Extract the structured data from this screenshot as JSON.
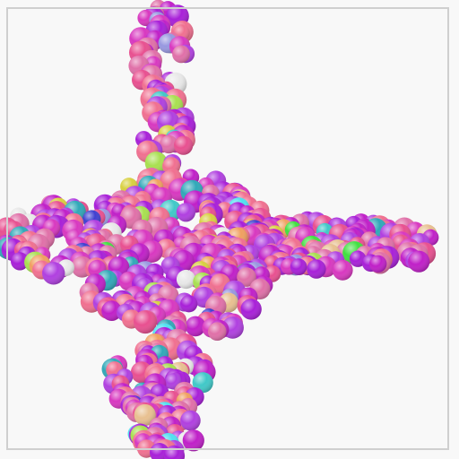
{
  "scene": {
    "subject": "particle-cluster",
    "background_color": "#f8f8f8",
    "frame_color": "#cfcfcf",
    "palette": {
      "dominant": [
        "#c020c8",
        "#d838c0",
        "#a820d8",
        "#e070a8",
        "#e85090",
        "#b040e0",
        "#f07090"
      ],
      "accent": [
        "#40c8c8",
        "#30a8b8",
        "#d8d040",
        "#a8e050",
        "#40e040",
        "#e8c090",
        "#f0a060",
        "#50e0f0",
        "#4040d0",
        "#e8e8e8",
        "#9898e0"
      ]
    }
  }
}
